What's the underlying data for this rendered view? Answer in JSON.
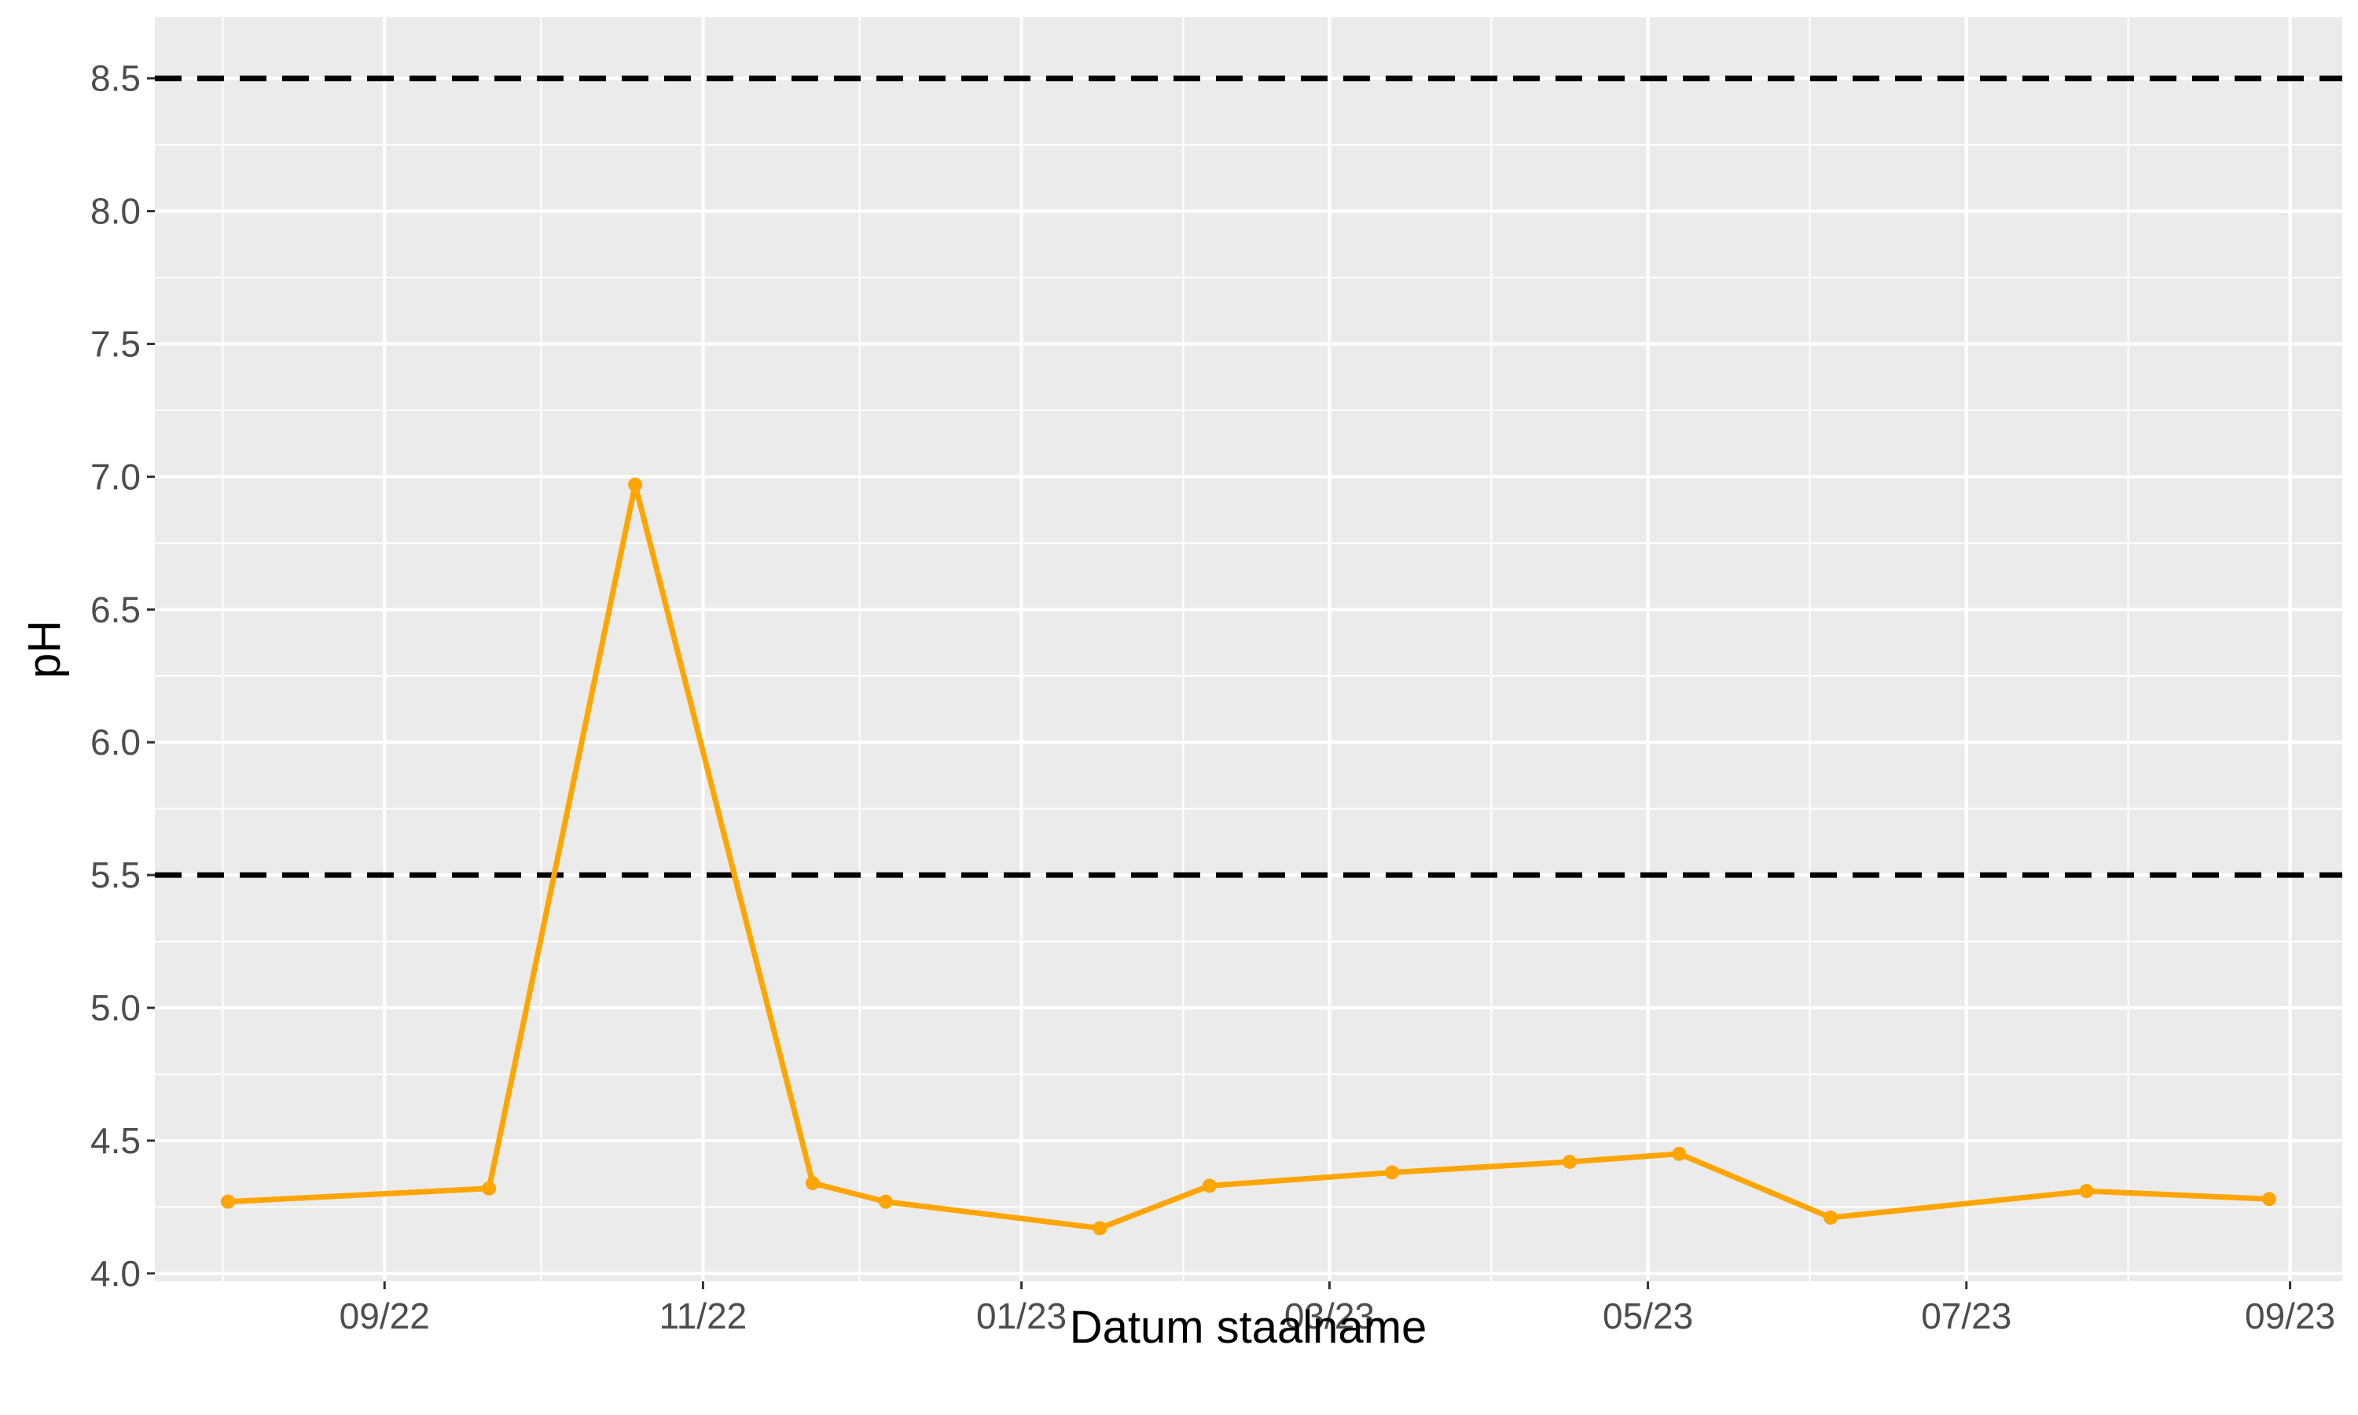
{
  "chart_data": {
    "type": "line",
    "title": "",
    "xlabel": "Datum staalname",
    "ylabel": "pH",
    "ylim": [
      3.97,
      8.73
    ],
    "xlim": [
      "2022-07-19",
      "2023-09-11"
    ],
    "y_ticks": [
      "4.0",
      "4.5",
      "5.0",
      "5.5",
      "6.0",
      "6.5",
      "7.0",
      "7.5",
      "8.0",
      "8.5"
    ],
    "x_ticks": [
      {
        "date": "2022-09-01",
        "label": "09/22"
      },
      {
        "date": "2022-11-01",
        "label": "11/22"
      },
      {
        "date": "2023-01-01",
        "label": "01/23"
      },
      {
        "date": "2023-03-01",
        "label": "03/23"
      },
      {
        "date": "2023-05-01",
        "label": "05/23"
      },
      {
        "date": "2023-07-01",
        "label": "07/23"
      },
      {
        "date": "2023-09-01",
        "label": "09/23"
      }
    ],
    "x_minor_ticks": [
      "2022-08-01",
      "2022-10-01",
      "2022-12-01",
      "2023-02-01",
      "2023-04-01",
      "2023-06-01",
      "2023-08-01"
    ],
    "reference_lines": [
      5.5,
      8.5
    ],
    "grid": true,
    "series": [
      {
        "color": "#FFA500",
        "points": [
          {
            "x": "2022-08-02",
            "y": 4.27
          },
          {
            "x": "2022-09-21",
            "y": 4.32
          },
          {
            "x": "2022-10-19",
            "y": 6.97
          },
          {
            "x": "2022-11-22",
            "y": 4.34
          },
          {
            "x": "2022-12-06",
            "y": 4.27
          },
          {
            "x": "2023-01-16",
            "y": 4.17
          },
          {
            "x": "2023-02-06",
            "y": 4.33
          },
          {
            "x": "2023-03-13",
            "y": 4.38
          },
          {
            "x": "2023-04-16",
            "y": 4.42
          },
          {
            "x": "2023-05-07",
            "y": 4.45
          },
          {
            "x": "2023-06-05",
            "y": 4.21
          },
          {
            "x": "2023-07-24",
            "y": 4.31
          },
          {
            "x": "2023-08-28",
            "y": 4.28
          }
        ]
      }
    ]
  }
}
